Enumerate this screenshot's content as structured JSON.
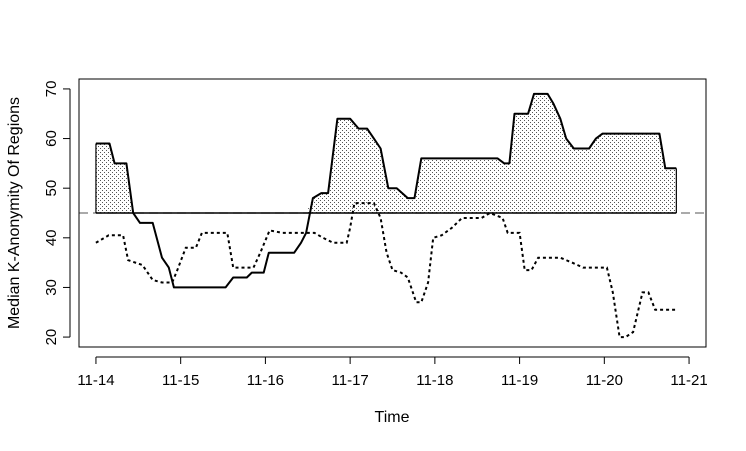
{
  "chart_data": {
    "type": "line",
    "title": "",
    "xlabel": "Time",
    "ylabel": "Median K-Anonymity Of Regions",
    "xlim": [
      -0.2,
      7.2
    ],
    "ylim": [
      18,
      72
    ],
    "x_ticks": [
      {
        "value": 0,
        "label": "11-14"
      },
      {
        "value": 1,
        "label": "11-15"
      },
      {
        "value": 2,
        "label": "11-16"
      },
      {
        "value": 3,
        "label": "11-17"
      },
      {
        "value": 4,
        "label": "11-18"
      },
      {
        "value": 5,
        "label": "11-19"
      },
      {
        "value": 6,
        "label": "11-20"
      },
      {
        "value": 7,
        "label": "11-21"
      }
    ],
    "y_ticks": [
      20,
      30,
      40,
      50,
      60,
      70
    ],
    "threshold": 45,
    "grid": false,
    "legend": "none",
    "series": [
      {
        "style": "solid",
        "points": [
          [
            0.0,
            59
          ],
          [
            0.16,
            59
          ],
          [
            0.22,
            55
          ],
          [
            0.36,
            55
          ],
          [
            0.44,
            45
          ],
          [
            0.52,
            43
          ],
          [
            0.67,
            43
          ],
          [
            0.78,
            36
          ],
          [
            0.86,
            34
          ],
          [
            0.92,
            30
          ],
          [
            1.0,
            30
          ],
          [
            1.2,
            30
          ],
          [
            1.4,
            30
          ],
          [
            1.53,
            30
          ],
          [
            1.62,
            32
          ],
          [
            1.78,
            32
          ],
          [
            1.84,
            33
          ],
          [
            1.98,
            33
          ],
          [
            2.04,
            37
          ],
          [
            2.34,
            37
          ],
          [
            2.42,
            39
          ],
          [
            2.48,
            41
          ],
          [
            2.56,
            48
          ],
          [
            2.66,
            49
          ],
          [
            2.74,
            49
          ],
          [
            2.85,
            64
          ],
          [
            3.0,
            64
          ],
          [
            3.1,
            62
          ],
          [
            3.2,
            62
          ],
          [
            3.28,
            60
          ],
          [
            3.36,
            58
          ],
          [
            3.45,
            50
          ],
          [
            3.55,
            50
          ],
          [
            3.68,
            48
          ],
          [
            3.76,
            48
          ],
          [
            3.84,
            56
          ],
          [
            4.0,
            56
          ],
          [
            4.2,
            56
          ],
          [
            4.4,
            56
          ],
          [
            4.6,
            56
          ],
          [
            4.74,
            56
          ],
          [
            4.82,
            55
          ],
          [
            4.88,
            55
          ],
          [
            4.94,
            65
          ],
          [
            5.1,
            65
          ],
          [
            5.17,
            69
          ],
          [
            5.33,
            69
          ],
          [
            5.4,
            67
          ],
          [
            5.48,
            64
          ],
          [
            5.55,
            60
          ],
          [
            5.64,
            58
          ],
          [
            5.82,
            58
          ],
          [
            5.9,
            60
          ],
          [
            5.98,
            61
          ],
          [
            6.2,
            61
          ],
          [
            6.46,
            61
          ],
          [
            6.65,
            61
          ],
          [
            6.72,
            54
          ],
          [
            6.85,
            54
          ]
        ]
      },
      {
        "style": "dotted",
        "points": [
          [
            0.0,
            39
          ],
          [
            0.15,
            40.5
          ],
          [
            0.32,
            40.5
          ],
          [
            0.38,
            35.5
          ],
          [
            0.55,
            34.5
          ],
          [
            0.67,
            31.5
          ],
          [
            0.78,
            31
          ],
          [
            0.9,
            31
          ],
          [
            0.96,
            33.5
          ],
          [
            1.06,
            38
          ],
          [
            1.18,
            38
          ],
          [
            1.25,
            41
          ],
          [
            1.55,
            41
          ],
          [
            1.62,
            34
          ],
          [
            1.86,
            34
          ],
          [
            1.94,
            37
          ],
          [
            2.05,
            41.5
          ],
          [
            2.2,
            41
          ],
          [
            2.42,
            41
          ],
          [
            2.58,
            41
          ],
          [
            2.68,
            40
          ],
          [
            2.8,
            39
          ],
          [
            2.96,
            39
          ],
          [
            3.0,
            42
          ],
          [
            3.05,
            47
          ],
          [
            3.28,
            47
          ],
          [
            3.36,
            44
          ],
          [
            3.43,
            37
          ],
          [
            3.5,
            33.5
          ],
          [
            3.6,
            33
          ],
          [
            3.68,
            32
          ],
          [
            3.78,
            27
          ],
          [
            3.84,
            27
          ],
          [
            3.92,
            31
          ],
          [
            3.98,
            40
          ],
          [
            4.08,
            40.5
          ],
          [
            4.2,
            42
          ],
          [
            4.32,
            44
          ],
          [
            4.55,
            44
          ],
          [
            4.65,
            45
          ],
          [
            4.8,
            44
          ],
          [
            4.86,
            41
          ],
          [
            5.0,
            41
          ],
          [
            5.06,
            33.5
          ],
          [
            5.14,
            33.5
          ],
          [
            5.22,
            36
          ],
          [
            5.48,
            36
          ],
          [
            5.62,
            35
          ],
          [
            5.75,
            34
          ],
          [
            5.88,
            34
          ],
          [
            6.03,
            34
          ],
          [
            6.1,
            29
          ],
          [
            6.18,
            20
          ],
          [
            6.25,
            20
          ],
          [
            6.34,
            21
          ],
          [
            6.45,
            29
          ],
          [
            6.52,
            29
          ],
          [
            6.6,
            25.5
          ],
          [
            6.85,
            25.5
          ]
        ]
      }
    ]
  }
}
